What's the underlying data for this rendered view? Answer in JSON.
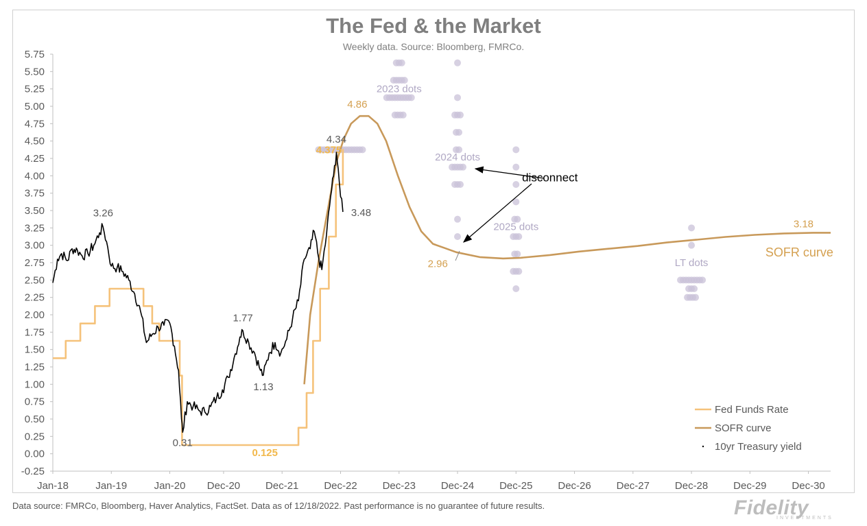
{
  "header": {
    "title": "The Fed & the Market",
    "subtitle": "Weekly data.  Source: Bloomberg, FMRCo."
  },
  "footer": {
    "note": "Data source: FMRCo, Bloomberg, Haver Analytics, FactSet. Data as of 12/18/2022. Past performance is no guarantee of future results.",
    "logo": "Fidelity",
    "logo_sub": "INVESTMENTS"
  },
  "colors": {
    "fed_funds": "#f5c27a",
    "sofr": "#c8995a",
    "treasury": "#000000",
    "dots": "#c9c2d8",
    "dot_labels": "#b0a8c4",
    "axis_text": "#595959",
    "annotation_orange": "#d4a050"
  },
  "chart_data": {
    "type": "line",
    "title": "The Fed & the Market",
    "subtitle": "Weekly data.  Source: Bloomberg, FMRCo.",
    "ylim": [
      -0.25,
      5.75
    ],
    "yticks": [
      "5.75",
      "5.50",
      "5.25",
      "5.00",
      "4.75",
      "4.50",
      "4.25",
      "4.00",
      "3.75",
      "3.50",
      "3.25",
      "3.00",
      "2.75",
      "2.50",
      "2.25",
      "2.00",
      "1.75",
      "1.50",
      "1.25",
      "1.00",
      "0.75",
      "0.50",
      "0.25",
      "0.00",
      "-0.25"
    ],
    "xlim": [
      2018.0,
      2031.3
    ],
    "xticks": [
      {
        "label": "Jan-18",
        "x": 2018.0
      },
      {
        "label": "Jan-19",
        "x": 2019.0
      },
      {
        "label": "Jan-20",
        "x": 2020.0
      },
      {
        "label": "Dec-20",
        "x": 2020.92
      },
      {
        "label": "Dec-21",
        "x": 2021.92
      },
      {
        "label": "Dec-22",
        "x": 2022.92
      },
      {
        "label": "Dec-23",
        "x": 2023.92
      },
      {
        "label": "Dec-24",
        "x": 2024.92
      },
      {
        "label": "Dec-25",
        "x": 2025.92
      },
      {
        "label": "Dec-26",
        "x": 2026.92
      },
      {
        "label": "Dec-27",
        "x": 2027.92
      },
      {
        "label": "Dec-28",
        "x": 2028.92
      },
      {
        "label": "Dec-29",
        "x": 2029.92
      },
      {
        "label": "Dec-30",
        "x": 2030.92
      }
    ],
    "legend": {
      "position": "bottom-right",
      "entries": [
        "Fed Funds Rate",
        "SOFR curve",
        "10yr Treasury yield"
      ]
    },
    "series": [
      {
        "name": "Fed Funds Rate",
        "kind": "step",
        "points": [
          [
            2018.0,
            1.375
          ],
          [
            2018.22,
            1.375
          ],
          [
            2018.22,
            1.625
          ],
          [
            2018.47,
            1.625
          ],
          [
            2018.47,
            1.875
          ],
          [
            2018.72,
            1.875
          ],
          [
            2018.72,
            2.125
          ],
          [
            2018.97,
            2.125
          ],
          [
            2018.97,
            2.375
          ],
          [
            2019.55,
            2.375
          ],
          [
            2019.55,
            2.125
          ],
          [
            2019.7,
            2.125
          ],
          [
            2019.7,
            1.875
          ],
          [
            2019.82,
            1.875
          ],
          [
            2019.82,
            1.625
          ],
          [
            2020.17,
            1.625
          ],
          [
            2020.17,
            1.125
          ],
          [
            2020.21,
            1.125
          ],
          [
            2020.21,
            0.125
          ],
          [
            2022.2,
            0.125
          ],
          [
            2022.2,
            0.375
          ],
          [
            2022.34,
            0.375
          ],
          [
            2022.34,
            0.875
          ],
          [
            2022.45,
            0.875
          ],
          [
            2022.45,
            1.625
          ],
          [
            2022.57,
            1.625
          ],
          [
            2022.57,
            2.375
          ],
          [
            2022.72,
            2.375
          ],
          [
            2022.72,
            3.125
          ],
          [
            2022.84,
            3.125
          ],
          [
            2022.84,
            3.875
          ],
          [
            2022.96,
            3.875
          ],
          [
            2022.96,
            4.375
          ],
          [
            2022.97,
            4.375
          ]
        ]
      },
      {
        "name": "SOFR curve",
        "kind": "line",
        "points": [
          [
            2022.3,
            1.0
          ],
          [
            2022.4,
            2.0
          ],
          [
            2022.55,
            2.8
          ],
          [
            2022.7,
            3.5
          ],
          [
            2022.85,
            4.2
          ],
          [
            2022.97,
            4.52
          ],
          [
            2023.1,
            4.75
          ],
          [
            2023.25,
            4.86
          ],
          [
            2023.4,
            4.86
          ],
          [
            2023.55,
            4.75
          ],
          [
            2023.7,
            4.5
          ],
          [
            2023.9,
            4.0
          ],
          [
            2024.1,
            3.55
          ],
          [
            2024.3,
            3.2
          ],
          [
            2024.5,
            3.02
          ],
          [
            2024.7,
            2.96
          ],
          [
            2024.9,
            2.9
          ],
          [
            2025.3,
            2.83
          ],
          [
            2025.7,
            2.81
          ],
          [
            2026.0,
            2.82
          ],
          [
            2026.5,
            2.86
          ],
          [
            2027.0,
            2.91
          ],
          [
            2027.5,
            2.95
          ],
          [
            2028.0,
            2.99
          ],
          [
            2028.5,
            3.04
          ],
          [
            2029.0,
            3.08
          ],
          [
            2029.5,
            3.12
          ],
          [
            2030.0,
            3.15
          ],
          [
            2030.5,
            3.17
          ],
          [
            2031.0,
            3.18
          ],
          [
            2031.3,
            3.18
          ]
        ]
      },
      {
        "name": "10yr Treasury yield",
        "kind": "weekly",
        "points": [
          [
            2018.0,
            2.46
          ],
          [
            2018.08,
            2.8
          ],
          [
            2018.15,
            2.88
          ],
          [
            2018.25,
            2.78
          ],
          [
            2018.33,
            2.95
          ],
          [
            2018.42,
            2.93
          ],
          [
            2018.5,
            2.85
          ],
          [
            2018.6,
            2.88
          ],
          [
            2018.7,
            3.0
          ],
          [
            2018.8,
            3.18
          ],
          [
            2018.86,
            3.26
          ],
          [
            2018.92,
            3.05
          ],
          [
            2019.0,
            2.7
          ],
          [
            2019.1,
            2.68
          ],
          [
            2019.2,
            2.62
          ],
          [
            2019.3,
            2.5
          ],
          [
            2019.4,
            2.3
          ],
          [
            2019.5,
            2.05
          ],
          [
            2019.6,
            1.6
          ],
          [
            2019.7,
            1.72
          ],
          [
            2019.8,
            1.82
          ],
          [
            2019.9,
            1.85
          ],
          [
            2020.0,
            1.88
          ],
          [
            2020.08,
            1.55
          ],
          [
            2020.15,
            1.2
          ],
          [
            2020.2,
            0.5
          ],
          [
            2020.22,
            0.31
          ],
          [
            2020.3,
            0.75
          ],
          [
            2020.4,
            0.68
          ],
          [
            2020.5,
            0.62
          ],
          [
            2020.6,
            0.6
          ],
          [
            2020.7,
            0.68
          ],
          [
            2020.8,
            0.8
          ],
          [
            2020.9,
            0.92
          ],
          [
            2021.0,
            1.1
          ],
          [
            2021.1,
            1.38
          ],
          [
            2021.2,
            1.68
          ],
          [
            2021.25,
            1.77
          ],
          [
            2021.35,
            1.6
          ],
          [
            2021.45,
            1.45
          ],
          [
            2021.55,
            1.2
          ],
          [
            2021.6,
            1.13
          ],
          [
            2021.7,
            1.45
          ],
          [
            2021.8,
            1.6
          ],
          [
            2021.9,
            1.45
          ],
          [
            2022.0,
            1.65
          ],
          [
            2022.1,
            1.95
          ],
          [
            2022.2,
            2.2
          ],
          [
            2022.3,
            2.8
          ],
          [
            2022.4,
            2.95
          ],
          [
            2022.47,
            3.2
          ],
          [
            2022.55,
            2.8
          ],
          [
            2022.6,
            2.65
          ],
          [
            2022.68,
            3.15
          ],
          [
            2022.75,
            3.7
          ],
          [
            2022.8,
            4.0
          ],
          [
            2022.85,
            4.34
          ],
          [
            2022.88,
            4.1
          ],
          [
            2022.92,
            3.7
          ],
          [
            2022.96,
            3.48
          ]
        ]
      }
    ],
    "dot_plots": [
      {
        "label": "2023 dots",
        "x": 2023.92,
        "dots": [
          [
            5.625,
            3
          ],
          [
            5.375,
            5
          ],
          [
            5.125,
            10
          ],
          [
            4.875,
            4
          ]
        ]
      },
      {
        "label": "2024 dots",
        "x": 2024.92,
        "dots": [
          [
            5.625,
            1
          ],
          [
            5.125,
            1
          ],
          [
            4.875,
            3
          ],
          [
            4.625,
            2
          ],
          [
            4.375,
            2
          ],
          [
            4.125,
            5
          ],
          [
            3.875,
            3
          ],
          [
            3.375,
            1
          ],
          [
            3.125,
            1
          ]
        ]
      },
      {
        "label": "2025 dots",
        "x": 2025.92,
        "dots": [
          [
            4.375,
            1
          ],
          [
            4.125,
            1
          ],
          [
            3.875,
            1
          ],
          [
            3.625,
            1
          ],
          [
            3.375,
            2
          ],
          [
            3.125,
            3
          ],
          [
            2.875,
            2
          ],
          [
            2.625,
            3
          ],
          [
            2.375,
            1
          ]
        ]
      },
      {
        "label": "LT dots",
        "x": 2028.92,
        "dots": [
          [
            3.25,
            1
          ],
          [
            3.0,
            1
          ],
          [
            2.5,
            9
          ],
          [
            2.375,
            3
          ],
          [
            2.25,
            4
          ]
        ]
      },
      {
        "label": "",
        "x": 2022.92,
        "dots": [
          [
            4.375,
            17
          ]
        ]
      }
    ],
    "annotations": [
      {
        "text": "3.26",
        "x": 2018.86,
        "y": 3.26,
        "color": "gray"
      },
      {
        "text": "0.31",
        "x": 2020.22,
        "y": 0.31,
        "color": "gray"
      },
      {
        "text": "1.77",
        "x": 2021.25,
        "y": 1.77,
        "color": "gray"
      },
      {
        "text": "1.13",
        "x": 2021.6,
        "y": 1.13,
        "color": "gray"
      },
      {
        "text": "4.34",
        "x": 2022.85,
        "y": 4.34,
        "color": "gray"
      },
      {
        "text": "3.48",
        "x": 2022.96,
        "y": 3.48,
        "color": "gray"
      },
      {
        "text": "4.86",
        "x": 2023.3,
        "y": 4.86,
        "color": "orange"
      },
      {
        "text": "4.375",
        "x": 2023.05,
        "y": 4.375,
        "color": "orange-light"
      },
      {
        "text": "0.125",
        "x": 2021.92,
        "y": 0.125,
        "color": "orange-light"
      },
      {
        "text": "2.96",
        "x": 2024.7,
        "y": 2.96,
        "color": "orange"
      },
      {
        "text": "3.18",
        "x": 2031.0,
        "y": 3.18,
        "color": "orange"
      },
      {
        "text": "SOFR curve",
        "x": 2031.0,
        "y": 2.9,
        "color": "orange"
      },
      {
        "text": "disconnect",
        "x": 2026.5,
        "y": 3.97,
        "color": "black"
      }
    ]
  }
}
